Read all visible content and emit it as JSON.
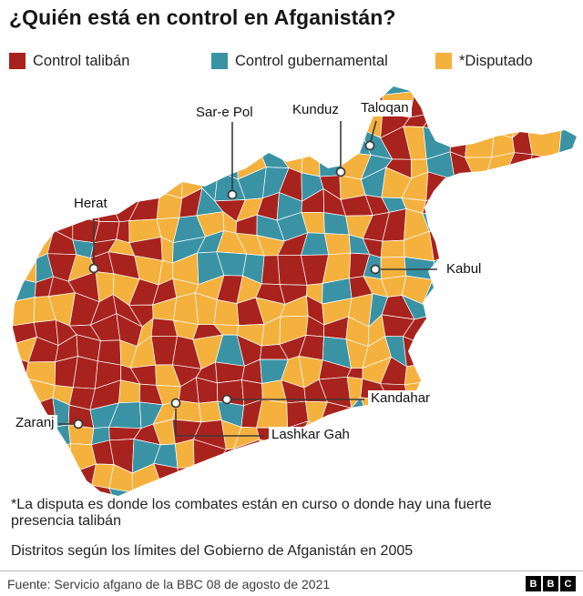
{
  "title": "¿Quién está en control en Afganistán?",
  "legend": [
    {
      "label": "Control talibán",
      "color": "#a8231d"
    },
    {
      "label": "Control gubernamental",
      "color": "#3993a5"
    },
    {
      "label": "*Disputado",
      "color": "#f5b13d"
    }
  ],
  "map": {
    "country": "Afganistán",
    "cities": [
      {
        "name": "Sar-e Pol"
      },
      {
        "name": "Kunduz"
      },
      {
        "name": "Taloqan"
      },
      {
        "name": "Herat"
      },
      {
        "name": "Kabul"
      },
      {
        "name": "Kandahar"
      },
      {
        "name": "Lashkar Gah"
      },
      {
        "name": "Zaranj"
      }
    ]
  },
  "footnotes": {
    "dispute": "*La disputa es donde los combates están en curso o donde hay una fuerte presencia talibán",
    "districts": "Distritos según los límites del Gobierno de Afganistán en 2005"
  },
  "footer": {
    "source": "Fuente: Servicio afgano de la BBC 08 de agosto de 2021",
    "logo_letters": [
      "B",
      "B",
      "C"
    ]
  }
}
